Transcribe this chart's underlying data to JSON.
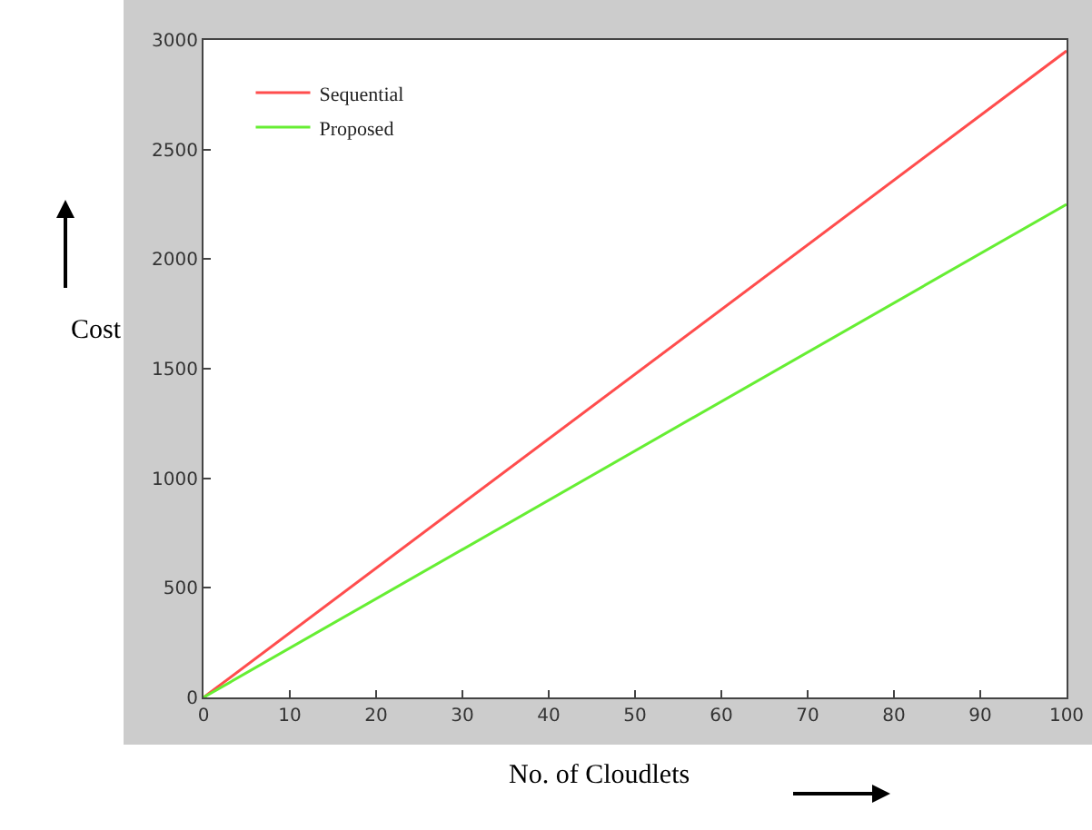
{
  "chart_data": {
    "type": "line",
    "xlabel": "No. of Cloudlets",
    "ylabel": "Cost",
    "x": [
      0,
      100
    ],
    "series": [
      {
        "name": "Sequential",
        "color": "#ff4d4d",
        "values": [
          0,
          2950
        ]
      },
      {
        "name": "Proposed",
        "color": "#66ee33",
        "values": [
          0,
          2250
        ]
      }
    ],
    "xlim": [
      0,
      100
    ],
    "xticks": [
      0,
      10,
      20,
      30,
      40,
      50,
      60,
      70,
      80,
      90,
      100
    ],
    "ylim": [
      0,
      3000
    ],
    "yticks": [
      0,
      500,
      1000,
      1500,
      2000,
      2500,
      3000
    ],
    "legend": "top left",
    "marker": "none",
    "line_style": "solid"
  }
}
